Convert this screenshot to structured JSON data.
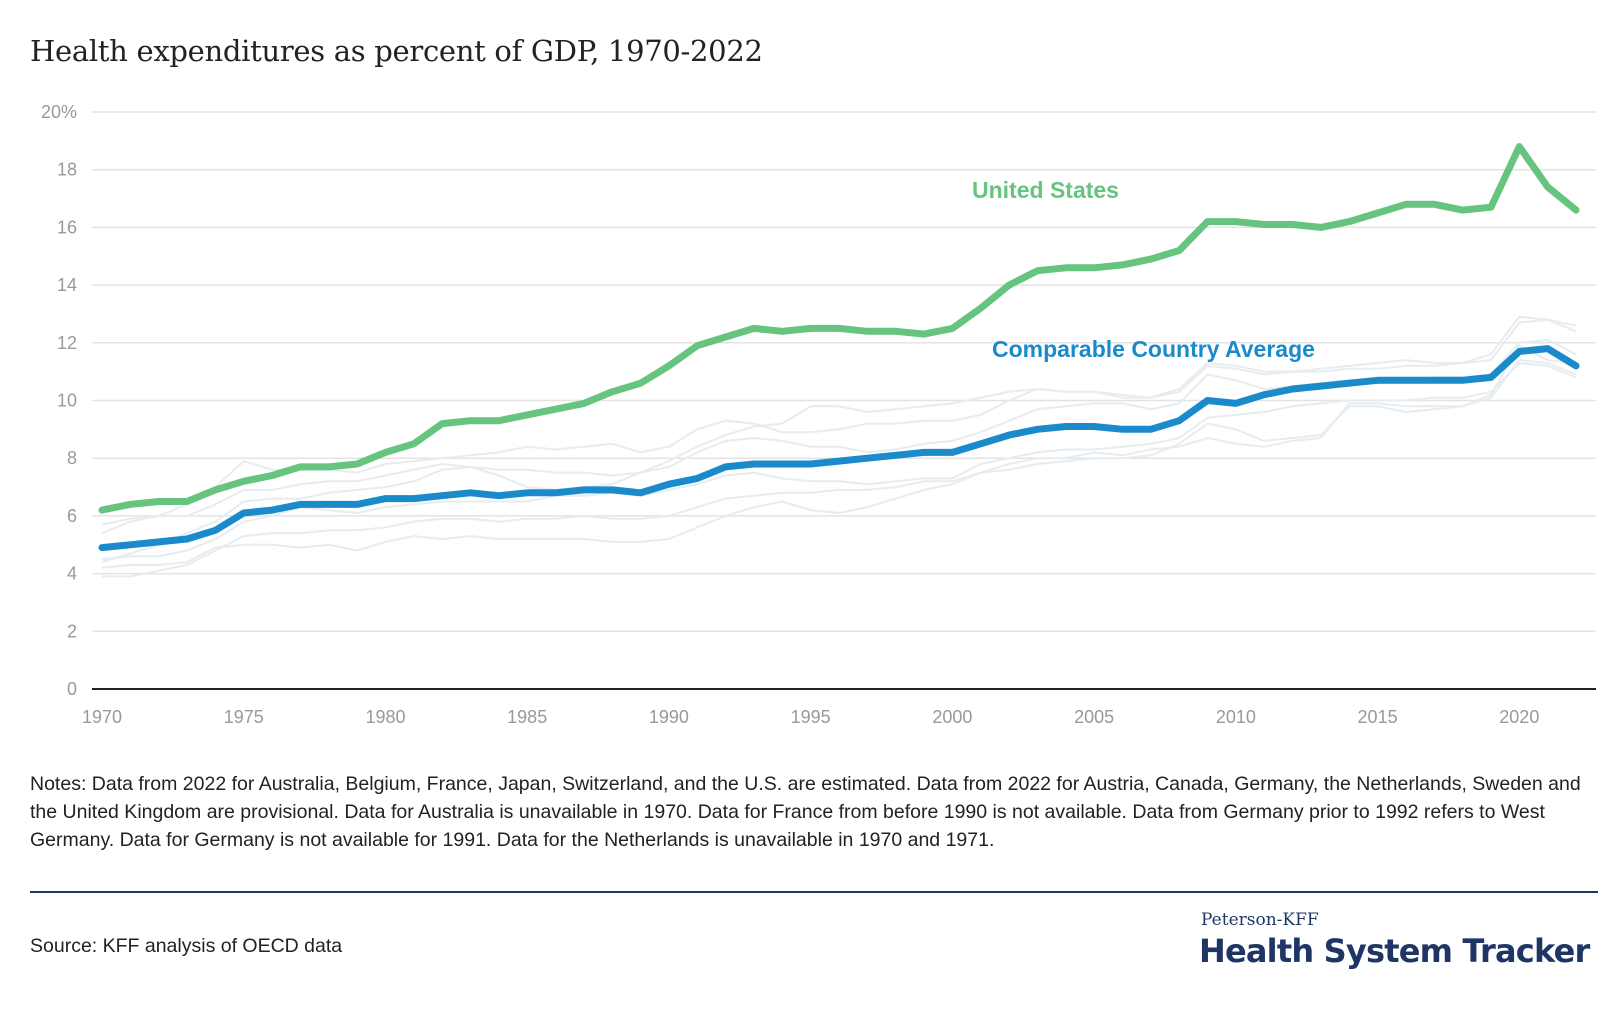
{
  "title": "Health expenditures as percent of GDP, 1970-2022",
  "notes": "Notes: Data from 2022 for Australia, Belgium, France, Japan, Switzerland, and the U.S. are estimated. Data from 2022 for Austria, Canada, Germany, the Netherlands, Sweden and the United Kingdom are provisional. Data for Australia is unavailable in 1970. Data for France from before 1990 is not available. Data from Germany prior to 1992 refers to West Germany. Data for Germany is not available for 1991. Data for the Netherlands is unavailable in 1970 and 1971.",
  "source": "Source: KFF analysis of OECD data",
  "logo": {
    "top": "Peterson-KFF",
    "main": "Health System Tracker"
  },
  "colors": {
    "us": "#66c47e",
    "avg": "#1a8acb",
    "background_lines": "#e6ecf0",
    "grid": "#e3e3e3"
  },
  "chart_data": {
    "type": "line",
    "title": "Health expenditures as percent of GDP, 1970-2022",
    "xlabel": "",
    "ylabel": "",
    "xlim": [
      1970,
      2022
    ],
    "ylim": [
      0,
      20
    ],
    "grid": true,
    "x_ticks": [
      "1970",
      "1975",
      "1980",
      "1985",
      "1990",
      "1995",
      "2000",
      "2005",
      "2010",
      "2015",
      "2020"
    ],
    "y_ticks": [
      "0",
      "2",
      "4",
      "6",
      "8",
      "10",
      "12",
      "14",
      "16",
      "18",
      "20%"
    ],
    "x": [
      1970,
      1971,
      1972,
      1973,
      1974,
      1975,
      1976,
      1977,
      1978,
      1979,
      1980,
      1981,
      1982,
      1983,
      1984,
      1985,
      1986,
      1987,
      1988,
      1989,
      1990,
      1991,
      1992,
      1993,
      1994,
      1995,
      1996,
      1997,
      1998,
      1999,
      2000,
      2001,
      2002,
      2003,
      2004,
      2005,
      2006,
      2007,
      2008,
      2009,
      2010,
      2011,
      2012,
      2013,
      2014,
      2015,
      2016,
      2017,
      2018,
      2019,
      2020,
      2021,
      2022
    ],
    "series": [
      {
        "name": "United States",
        "label": "United States",
        "values": [
          6.2,
          6.4,
          6.5,
          6.5,
          6.9,
          7.2,
          7.4,
          7.7,
          7.7,
          7.8,
          8.2,
          8.5,
          9.2,
          9.3,
          9.3,
          9.5,
          9.7,
          9.9,
          10.3,
          10.6,
          11.2,
          11.9,
          12.2,
          12.5,
          12.4,
          12.5,
          12.5,
          12.4,
          12.4,
          12.3,
          12.5,
          13.2,
          14.0,
          14.5,
          14.6,
          14.6,
          14.7,
          14.9,
          15.2,
          16.2,
          16.2,
          16.1,
          16.1,
          16.0,
          16.2,
          16.5,
          16.8,
          16.8,
          16.6,
          16.7,
          18.8,
          17.4,
          16.6
        ]
      },
      {
        "name": "Comparable Country Average",
        "label": "Comparable Country Average",
        "values": [
          4.9,
          5.0,
          5.1,
          5.2,
          5.5,
          6.1,
          6.2,
          6.4,
          6.4,
          6.4,
          6.6,
          6.6,
          6.7,
          6.8,
          6.7,
          6.8,
          6.8,
          6.9,
          6.9,
          6.8,
          7.1,
          7.3,
          7.7,
          7.8,
          7.8,
          7.8,
          7.9,
          8.0,
          8.1,
          8.2,
          8.2,
          8.5,
          8.8,
          9.0,
          9.1,
          9.1,
          9.0,
          9.0,
          9.3,
          10.0,
          9.9,
          10.2,
          10.4,
          10.5,
          10.6,
          10.7,
          10.7,
          10.7,
          10.7,
          10.8,
          11.7,
          11.8,
          11.2
        ]
      }
    ],
    "background_series": [
      [
        5.4,
        5.8,
        6.0,
        6.4,
        7.0,
        7.9,
        7.6,
        7.6,
        7.6,
        7.5,
        7.8,
        7.9,
        8.0,
        8.1,
        8.2,
        8.4,
        8.3,
        8.4,
        8.5,
        8.2,
        8.4,
        9.0,
        9.3,
        9.2,
        8.9,
        8.9,
        9.0,
        9.2,
        9.2,
        9.3,
        9.3,
        9.5,
        10.0,
        10.4,
        10.3,
        10.3,
        10.1,
        10.1,
        10.4,
        11.3,
        11.2,
        11.0,
        11.0,
        11.1,
        11.2,
        11.3,
        11.4,
        11.3,
        11.3,
        11.6,
        12.9,
        12.8,
        12.6
      ],
      [
        4.4,
        4.7,
        5.0,
        5.4,
        5.8,
        6.5,
        6.6,
        6.6,
        6.8,
        6.9,
        7.0,
        7.2,
        7.6,
        7.7,
        7.4,
        7.0,
        6.9,
        7.0,
        7.1,
        7.5,
        7.9,
        8.4,
        8.8,
        9.1,
        9.2,
        9.8,
        9.8,
        9.6,
        9.7,
        9.8,
        9.9,
        10.1,
        10.3,
        10.4,
        10.3,
        10.3,
        10.2,
        10.1,
        10.3,
        11.2,
        11.1,
        10.9,
        11.0,
        11.0,
        11.1,
        11.1,
        11.2,
        11.2,
        11.3,
        11.4,
        12.7,
        12.8,
        12.4
      ],
      [
        3.9,
        3.9,
        4.1,
        4.3,
        4.8,
        5.3,
        5.4,
        5.4,
        5.5,
        5.5,
        5.6,
        5.8,
        5.9,
        5.9,
        5.8,
        5.9,
        5.9,
        6.0,
        5.9,
        5.9,
        6.0,
        6.3,
        6.6,
        6.7,
        6.8,
        6.8,
        6.9,
        6.9,
        7.0,
        7.2,
        7.2,
        7.5,
        7.6,
        7.8,
        7.9,
        8.0,
        8.0,
        8.1,
        8.5,
        9.2,
        9.0,
        8.6,
        8.7,
        8.8,
        9.8,
        9.8,
        9.6,
        9.7,
        9.8,
        10.1,
        11.4,
        11.3,
        10.9
      ],
      [
        4.5,
        4.6,
        4.6,
        4.8,
        5.2,
        5.8,
        6.0,
        6.3,
        6.2,
        6.1,
        6.3,
        6.4,
        6.5,
        6.5,
        6.5,
        6.5,
        6.7,
        6.7,
        6.8,
        6.7,
        6.9,
        7.1,
        7.4,
        7.5,
        7.3,
        7.2,
        7.2,
        7.1,
        7.2,
        7.3,
        7.3,
        7.8,
        8.0,
        8.2,
        8.3,
        8.3,
        8.4,
        8.5,
        8.7,
        9.4,
        9.5,
        9.6,
        9.8,
        9.9,
        10.0,
        10.0,
        10.0,
        10.1,
        10.1,
        10.3,
        11.3,
        11.2,
        10.8
      ],
      [
        4.2,
        4.3,
        4.3,
        4.4,
        4.9,
        5.0,
        5.0,
        4.9,
        5.0,
        4.8,
        5.1,
        5.3,
        5.2,
        5.3,
        5.2,
        5.2,
        5.2,
        5.2,
        5.1,
        5.1,
        5.2,
        5.6,
        6.0,
        6.3,
        6.5,
        6.2,
        6.1,
        6.3,
        6.6,
        6.9,
        7.1,
        7.5,
        7.8,
        8.0,
        8.0,
        8.2,
        8.1,
        8.3,
        8.4,
        8.7,
        8.5,
        8.4,
        8.6,
        8.7,
        9.9,
        9.9,
        9.8,
        9.8,
        9.8,
        10.2,
        11.9,
        11.4,
        11.3
      ],
      [
        5.7,
        5.9,
        6.0,
        6.0,
        6.4,
        6.9,
        6.9,
        7.1,
        7.2,
        7.2,
        7.4,
        7.6,
        7.8,
        7.7,
        7.6,
        7.6,
        7.5,
        7.5,
        7.4,
        7.5,
        7.7,
        8.2,
        8.6,
        8.7,
        8.6,
        8.4,
        8.4,
        8.2,
        8.3,
        8.5,
        8.6,
        8.9,
        9.3,
        9.7,
        9.8,
        9.9,
        9.9,
        9.7,
        9.9,
        10.9,
        10.7,
        10.4,
        10.5,
        10.6,
        10.7,
        10.6,
        10.7,
        10.8,
        10.8,
        10.9,
        12.0,
        12.1,
        11.6
      ]
    ]
  }
}
